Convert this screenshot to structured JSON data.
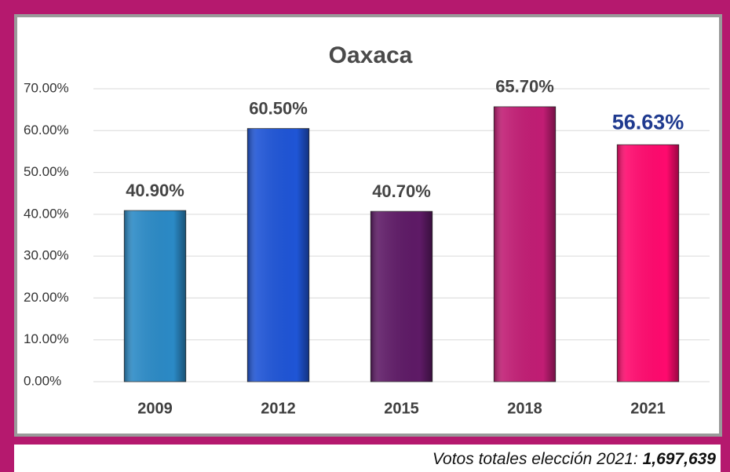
{
  "chart_data": {
    "type": "bar",
    "title": "Oaxaca",
    "categories": [
      "2009",
      "2012",
      "2015",
      "2018",
      "2021"
    ],
    "values": [
      40.9,
      60.5,
      40.7,
      65.7,
      56.63
    ],
    "value_labels": [
      "40.90%",
      "60.50%",
      "40.70%",
      "65.70%",
      "56.63%"
    ],
    "colors": [
      "#2b8ac6",
      "#1f55d6",
      "#5e1a66",
      "#c11d74",
      "#ff0a6e"
    ],
    "value_label_colors": [
      "#444444",
      "#444444",
      "#444444",
      "#444444",
      "#1f3a8f"
    ],
    "ylim": [
      0,
      70
    ],
    "yticks": [
      {
        "value": 0,
        "label": "0.00%"
      },
      {
        "value": 10,
        "label": "10.00%"
      },
      {
        "value": 20,
        "label": "20.00%"
      },
      {
        "value": 30,
        "label": "30.00%"
      },
      {
        "value": 40,
        "label": "40.00%"
      },
      {
        "value": 50,
        "label": "50.00%"
      },
      {
        "value": 60,
        "label": "60.00%"
      },
      {
        "value": 70,
        "label": "70.00%"
      }
    ],
    "grid": true,
    "note": {
      "label": "Votos totales elección 2021:",
      "value": "1,697,639"
    }
  }
}
